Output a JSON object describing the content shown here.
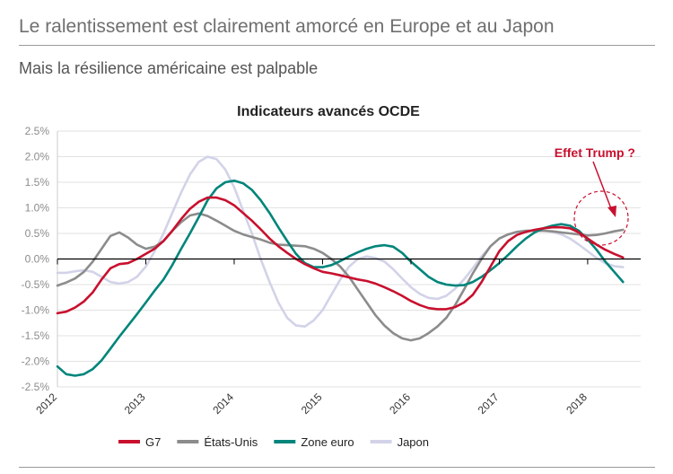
{
  "header": {
    "title": "Le ralentissement est clairement amorcé en Europe et au Japon",
    "subtitle": "Mais la résilience américaine est palpable"
  },
  "chart_data": {
    "type": "line",
    "title": "Indicateurs avancés OCDE",
    "xlabel": "",
    "ylabel": "",
    "xlim": [
      2012,
      2018.6
    ],
    "ylim": [
      -2.5,
      2.5
    ],
    "yticks": [
      2.5,
      2.0,
      1.5,
      1.0,
      0.5,
      0.0,
      -0.5,
      -1.0,
      -1.5,
      -2.0,
      -2.5
    ],
    "ytick_labels": [
      "2.5%",
      "2.0%",
      "1.5%",
      "1.0%",
      "0.5%",
      "0.0%",
      "-0.5%",
      "-1.0%",
      "-1.5%",
      "-2.0%",
      "-2.5%"
    ],
    "xticks": [
      2012,
      2013,
      2014,
      2015,
      2016,
      2017,
      2018
    ],
    "xtick_labels": [
      "2012",
      "2013",
      "2014",
      "2015",
      "2016",
      "2017",
      "2018"
    ],
    "grid": true,
    "legend_position": "bottom",
    "annotation": {
      "text": "Effet Trump ?",
      "color": "#c8102e"
    },
    "series": [
      {
        "name": "G7",
        "color": "#c8102e",
        "points": [
          [
            2012.0,
            -1.06
          ],
          [
            2012.1,
            -1.03
          ],
          [
            2012.2,
            -0.95
          ],
          [
            2012.3,
            -0.83
          ],
          [
            2012.4,
            -0.65
          ],
          [
            2012.5,
            -0.4
          ],
          [
            2012.6,
            -0.18
          ],
          [
            2012.7,
            -0.1
          ],
          [
            2012.8,
            -0.08
          ],
          [
            2012.9,
            0.0
          ],
          [
            2013.0,
            0.1
          ],
          [
            2013.1,
            0.2
          ],
          [
            2013.2,
            0.35
          ],
          [
            2013.3,
            0.55
          ],
          [
            2013.4,
            0.78
          ],
          [
            2013.5,
            0.98
          ],
          [
            2013.6,
            1.12
          ],
          [
            2013.7,
            1.2
          ],
          [
            2013.8,
            1.2
          ],
          [
            2013.9,
            1.15
          ],
          [
            2014.0,
            1.05
          ],
          [
            2014.1,
            0.9
          ],
          [
            2014.2,
            0.75
          ],
          [
            2014.3,
            0.58
          ],
          [
            2014.4,
            0.4
          ],
          [
            2014.5,
            0.25
          ],
          [
            2014.6,
            0.12
          ],
          [
            2014.7,
            0.0
          ],
          [
            2014.8,
            -0.1
          ],
          [
            2014.9,
            -0.18
          ],
          [
            2015.0,
            -0.25
          ],
          [
            2015.1,
            -0.28
          ],
          [
            2015.2,
            -0.32
          ],
          [
            2015.3,
            -0.36
          ],
          [
            2015.4,
            -0.4
          ],
          [
            2015.5,
            -0.43
          ],
          [
            2015.6,
            -0.48
          ],
          [
            2015.7,
            -0.55
          ],
          [
            2015.8,
            -0.63
          ],
          [
            2015.9,
            -0.72
          ],
          [
            2016.0,
            -0.82
          ],
          [
            2016.1,
            -0.9
          ],
          [
            2016.2,
            -0.96
          ],
          [
            2016.3,
            -0.98
          ],
          [
            2016.4,
            -0.98
          ],
          [
            2016.5,
            -0.94
          ],
          [
            2016.6,
            -0.85
          ],
          [
            2016.7,
            -0.7
          ],
          [
            2016.8,
            -0.45
          ],
          [
            2016.9,
            -0.15
          ],
          [
            2017.0,
            0.15
          ],
          [
            2017.1,
            0.35
          ],
          [
            2017.2,
            0.47
          ],
          [
            2017.3,
            0.53
          ],
          [
            2017.4,
            0.57
          ],
          [
            2017.5,
            0.6
          ],
          [
            2017.6,
            0.62
          ],
          [
            2017.7,
            0.62
          ],
          [
            2017.8,
            0.6
          ],
          [
            2017.9,
            0.52
          ],
          [
            2018.0,
            0.4
          ],
          [
            2018.1,
            0.28
          ],
          [
            2018.2,
            0.18
          ],
          [
            2018.3,
            0.1
          ],
          [
            2018.4,
            0.03
          ]
        ]
      },
      {
        "name": "États-Unis",
        "color": "#8c8c8c",
        "points": [
          [
            2012.0,
            -0.52
          ],
          [
            2012.1,
            -0.46
          ],
          [
            2012.2,
            -0.38
          ],
          [
            2012.3,
            -0.25
          ],
          [
            2012.4,
            -0.05
          ],
          [
            2012.5,
            0.2
          ],
          [
            2012.6,
            0.45
          ],
          [
            2012.7,
            0.52
          ],
          [
            2012.8,
            0.42
          ],
          [
            2012.9,
            0.28
          ],
          [
            2013.0,
            0.2
          ],
          [
            2013.1,
            0.24
          ],
          [
            2013.2,
            0.35
          ],
          [
            2013.3,
            0.55
          ],
          [
            2013.4,
            0.72
          ],
          [
            2013.5,
            0.85
          ],
          [
            2013.6,
            0.89
          ],
          [
            2013.7,
            0.84
          ],
          [
            2013.8,
            0.75
          ],
          [
            2013.9,
            0.65
          ],
          [
            2014.0,
            0.55
          ],
          [
            2014.1,
            0.48
          ],
          [
            2014.2,
            0.43
          ],
          [
            2014.3,
            0.38
          ],
          [
            2014.4,
            0.32
          ],
          [
            2014.5,
            0.28
          ],
          [
            2014.6,
            0.27
          ],
          [
            2014.7,
            0.26
          ],
          [
            2014.8,
            0.25
          ],
          [
            2014.9,
            0.2
          ],
          [
            2015.0,
            0.12
          ],
          [
            2015.1,
            0.0
          ],
          [
            2015.2,
            -0.15
          ],
          [
            2015.3,
            -0.35
          ],
          [
            2015.4,
            -0.6
          ],
          [
            2015.5,
            -0.85
          ],
          [
            2015.6,
            -1.1
          ],
          [
            2015.7,
            -1.3
          ],
          [
            2015.8,
            -1.45
          ],
          [
            2015.9,
            -1.55
          ],
          [
            2016.0,
            -1.59
          ],
          [
            2016.1,
            -1.55
          ],
          [
            2016.2,
            -1.45
          ],
          [
            2016.3,
            -1.32
          ],
          [
            2016.4,
            -1.15
          ],
          [
            2016.5,
            -0.9
          ],
          [
            2016.6,
            -0.6
          ],
          [
            2016.7,
            -0.28
          ],
          [
            2016.8,
            0.0
          ],
          [
            2016.9,
            0.25
          ],
          [
            2017.0,
            0.4
          ],
          [
            2017.1,
            0.48
          ],
          [
            2017.2,
            0.53
          ],
          [
            2017.3,
            0.55
          ],
          [
            2017.4,
            0.55
          ],
          [
            2017.5,
            0.55
          ],
          [
            2017.6,
            0.54
          ],
          [
            2017.7,
            0.52
          ],
          [
            2017.8,
            0.5
          ],
          [
            2017.9,
            0.48
          ],
          [
            2018.0,
            0.46
          ],
          [
            2018.1,
            0.47
          ],
          [
            2018.2,
            0.5
          ],
          [
            2018.3,
            0.54
          ],
          [
            2018.4,
            0.57
          ]
        ]
      },
      {
        "name": "Zone euro",
        "color": "#00857b",
        "points": [
          [
            2012.0,
            -2.1
          ],
          [
            2012.1,
            -2.25
          ],
          [
            2012.2,
            -2.28
          ],
          [
            2012.3,
            -2.25
          ],
          [
            2012.4,
            -2.15
          ],
          [
            2012.5,
            -1.98
          ],
          [
            2012.6,
            -1.75
          ],
          [
            2012.7,
            -1.52
          ],
          [
            2012.8,
            -1.3
          ],
          [
            2012.9,
            -1.08
          ],
          [
            2013.0,
            -0.85
          ],
          [
            2013.1,
            -0.62
          ],
          [
            2013.2,
            -0.4
          ],
          [
            2013.3,
            -0.12
          ],
          [
            2013.4,
            0.2
          ],
          [
            2013.5,
            0.5
          ],
          [
            2013.6,
            0.82
          ],
          [
            2013.7,
            1.15
          ],
          [
            2013.8,
            1.38
          ],
          [
            2013.9,
            1.5
          ],
          [
            2014.0,
            1.53
          ],
          [
            2014.1,
            1.48
          ],
          [
            2014.2,
            1.35
          ],
          [
            2014.3,
            1.15
          ],
          [
            2014.4,
            0.9
          ],
          [
            2014.5,
            0.62
          ],
          [
            2014.6,
            0.35
          ],
          [
            2014.7,
            0.1
          ],
          [
            2014.8,
            -0.08
          ],
          [
            2014.9,
            -0.16
          ],
          [
            2015.0,
            -0.16
          ],
          [
            2015.1,
            -0.12
          ],
          [
            2015.2,
            -0.04
          ],
          [
            2015.3,
            0.05
          ],
          [
            2015.4,
            0.13
          ],
          [
            2015.5,
            0.2
          ],
          [
            2015.6,
            0.25
          ],
          [
            2015.7,
            0.27
          ],
          [
            2015.8,
            0.24
          ],
          [
            2015.9,
            0.12
          ],
          [
            2016.0,
            -0.05
          ],
          [
            2016.1,
            -0.2
          ],
          [
            2016.2,
            -0.35
          ],
          [
            2016.3,
            -0.45
          ],
          [
            2016.4,
            -0.5
          ],
          [
            2016.5,
            -0.52
          ],
          [
            2016.6,
            -0.51
          ],
          [
            2016.7,
            -0.45
          ],
          [
            2016.8,
            -0.35
          ],
          [
            2016.9,
            -0.22
          ],
          [
            2017.0,
            -0.08
          ],
          [
            2017.1,
            0.08
          ],
          [
            2017.2,
            0.25
          ],
          [
            2017.3,
            0.4
          ],
          [
            2017.4,
            0.52
          ],
          [
            2017.5,
            0.6
          ],
          [
            2017.6,
            0.65
          ],
          [
            2017.7,
            0.68
          ],
          [
            2017.8,
            0.65
          ],
          [
            2017.9,
            0.55
          ],
          [
            2018.0,
            0.38
          ],
          [
            2018.1,
            0.18
          ],
          [
            2018.2,
            -0.05
          ],
          [
            2018.3,
            -0.25
          ],
          [
            2018.4,
            -0.45
          ]
        ]
      },
      {
        "name": "Japon",
        "color": "#d2d3e8",
        "points": [
          [
            2012.0,
            -0.27
          ],
          [
            2012.1,
            -0.27
          ],
          [
            2012.2,
            -0.24
          ],
          [
            2012.3,
            -0.22
          ],
          [
            2012.4,
            -0.25
          ],
          [
            2012.5,
            -0.35
          ],
          [
            2012.6,
            -0.45
          ],
          [
            2012.7,
            -0.48
          ],
          [
            2012.8,
            -0.45
          ],
          [
            2012.9,
            -0.35
          ],
          [
            2013.0,
            -0.15
          ],
          [
            2013.1,
            0.15
          ],
          [
            2013.2,
            0.5
          ],
          [
            2013.3,
            0.9
          ],
          [
            2013.4,
            1.3
          ],
          [
            2013.5,
            1.65
          ],
          [
            2013.6,
            1.9
          ],
          [
            2013.7,
            2.0
          ],
          [
            2013.8,
            1.95
          ],
          [
            2013.9,
            1.75
          ],
          [
            2014.0,
            1.4
          ],
          [
            2014.1,
            0.95
          ],
          [
            2014.2,
            0.5
          ],
          [
            2014.3,
            0.0
          ],
          [
            2014.4,
            -0.45
          ],
          [
            2014.5,
            -0.85
          ],
          [
            2014.6,
            -1.15
          ],
          [
            2014.7,
            -1.3
          ],
          [
            2014.8,
            -1.32
          ],
          [
            2014.9,
            -1.2
          ],
          [
            2015.0,
            -1.0
          ],
          [
            2015.1,
            -0.7
          ],
          [
            2015.2,
            -0.4
          ],
          [
            2015.3,
            -0.15
          ],
          [
            2015.4,
            0.0
          ],
          [
            2015.5,
            0.05
          ],
          [
            2015.6,
            0.02
          ],
          [
            2015.7,
            -0.05
          ],
          [
            2015.8,
            -0.2
          ],
          [
            2015.9,
            -0.38
          ],
          [
            2016.0,
            -0.55
          ],
          [
            2016.1,
            -0.68
          ],
          [
            2016.2,
            -0.76
          ],
          [
            2016.3,
            -0.78
          ],
          [
            2016.4,
            -0.72
          ],
          [
            2016.5,
            -0.58
          ],
          [
            2016.6,
            -0.4
          ],
          [
            2016.7,
            -0.18
          ],
          [
            2016.8,
            0.05
          ],
          [
            2016.9,
            0.25
          ],
          [
            2017.0,
            0.4
          ],
          [
            2017.1,
            0.48
          ],
          [
            2017.2,
            0.52
          ],
          [
            2017.3,
            0.55
          ],
          [
            2017.4,
            0.56
          ],
          [
            2017.5,
            0.56
          ],
          [
            2017.6,
            0.53
          ],
          [
            2017.7,
            0.48
          ],
          [
            2017.8,
            0.4
          ],
          [
            2017.9,
            0.28
          ],
          [
            2018.0,
            0.15
          ],
          [
            2018.1,
            0.02
          ],
          [
            2018.2,
            -0.08
          ],
          [
            2018.3,
            -0.14
          ],
          [
            2018.4,
            -0.16
          ]
        ]
      }
    ]
  }
}
